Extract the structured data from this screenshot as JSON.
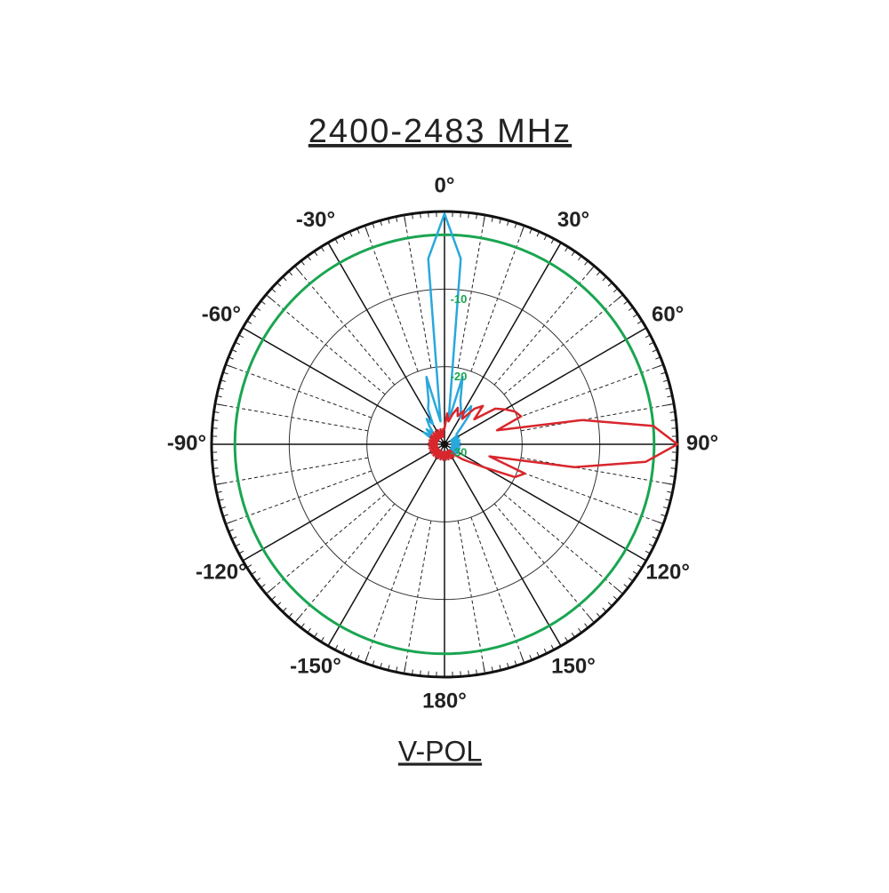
{
  "chart_data": {
    "type": "polar",
    "title": "2400-2483 MHz",
    "caption": "V-POL",
    "rlim": [
      -30,
      0
    ],
    "rticks": [
      -10,
      -20,
      -30
    ],
    "rtick_color": "#1aa551",
    "reference_line": {
      "value": -3,
      "color": "#1aa551"
    },
    "thetaticks": [
      {
        "value": 0,
        "label": "0°"
      },
      {
        "value": 30,
        "label": "30°"
      },
      {
        "value": 60,
        "label": "60°"
      },
      {
        "value": 90,
        "label": "90°"
      },
      {
        "value": 120,
        "label": "120°"
      },
      {
        "value": 150,
        "label": "150°"
      },
      {
        "value": 180,
        "label": "180°"
      },
      {
        "value": -150,
        "label": "-150°"
      },
      {
        "value": -120,
        "label": "-120°"
      },
      {
        "value": -90,
        "label": "-90°"
      },
      {
        "value": -60,
        "label": "-60°"
      },
      {
        "value": -30,
        "label": "-30°"
      }
    ],
    "theta": [
      -180,
      -175,
      -170,
      -165,
      -160,
      -155,
      -150,
      -145,
      -140,
      -135,
      -130,
      -125,
      -120,
      -115,
      -110,
      -105,
      -100,
      -95,
      -90,
      -85,
      -80,
      -75,
      -70,
      -65,
      -60,
      -55,
      -50,
      -45,
      -40,
      -35,
      -30,
      -25,
      -20,
      -15,
      -10,
      -5,
      0,
      5,
      10,
      15,
      20,
      25,
      30,
      35,
      40,
      45,
      50,
      55,
      60,
      65,
      70,
      75,
      80,
      85,
      90,
      95,
      100,
      105,
      110,
      115,
      120,
      125,
      130,
      135,
      140,
      145,
      150,
      155,
      160,
      165,
      170,
      175
    ],
    "series": [
      {
        "color": "#29a8dc",
        "values": [
          -29,
          -28,
          -29,
          -28,
          -29,
          -28,
          -29,
          -28,
          -29,
          -28,
          -29,
          -28,
          -29,
          -28,
          -29,
          -28,
          -29,
          -28,
          -29,
          -28,
          -29,
          -28,
          -29,
          -28,
          -27,
          -28,
          -27,
          -28,
          -27,
          -26,
          -27,
          -25,
          -24,
          -21,
          -27,
          -6,
          -0.3,
          -6,
          -27,
          -21,
          -24,
          -25,
          -26,
          -24,
          -25,
          -27,
          -28,
          -28,
          -29,
          -28,
          -29,
          -28,
          -29,
          -28,
          -29,
          -28,
          -29,
          -28,
          -29,
          -28,
          -29,
          -28,
          -29,
          -28,
          -29,
          -28,
          -29,
          -28,
          -29,
          -28,
          -29,
          -28
        ]
      },
      {
        "color": "#d9262c",
        "values": [
          -29,
          -28,
          -29,
          -28,
          -29,
          -28,
          -29,
          -28,
          -29,
          -28,
          -29,
          -28,
          -29,
          -28,
          -29,
          -28,
          -29,
          -28,
          -29,
          -28,
          -29,
          -28,
          -29,
          -28,
          -29,
          -28,
          -29,
          -28,
          -29,
          -28,
          -29,
          -28,
          -29,
          -28,
          -29,
          -28,
          -28,
          -26,
          -27,
          -26,
          -25,
          -26,
          -25,
          -26,
          -24,
          -23,
          -25,
          -22,
          -21,
          -20,
          -19.5,
          -23,
          -12,
          -3,
          0,
          -4,
          -13,
          -24,
          -19,
          -20,
          -24,
          -26,
          -27,
          -28,
          -29,
          -28,
          -29,
          -28,
          -29,
          -28,
          -29,
          -28
        ]
      }
    ]
  }
}
